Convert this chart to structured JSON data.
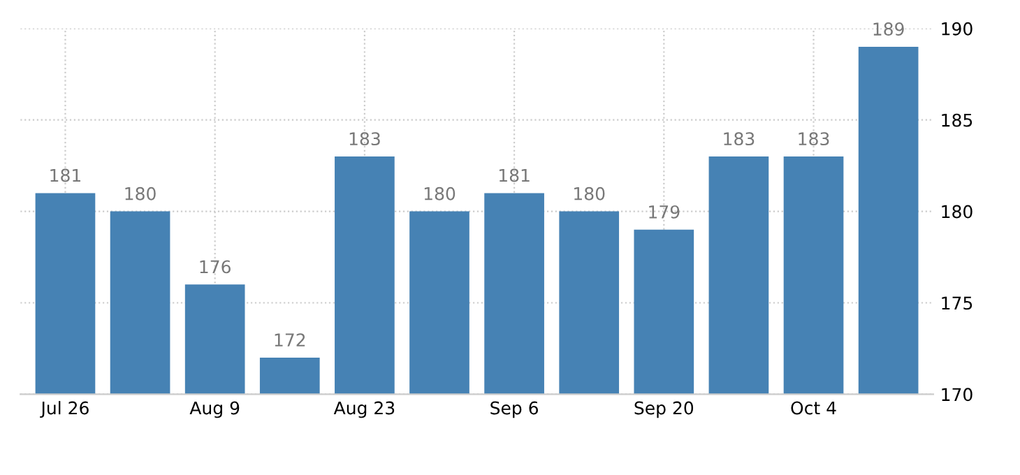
{
  "chart_data": {
    "type": "bar",
    "categories": [
      "Jul 26",
      null,
      "Aug 9",
      null,
      "Aug 23",
      null,
      "Sep 6",
      null,
      "Sep 20",
      null,
      "Oct 4",
      null
    ],
    "values": [
      181,
      180,
      176,
      172,
      183,
      180,
      181,
      180,
      179,
      183,
      183,
      189
    ],
    "color": "#4682b4",
    "ylim": [
      170,
      190
    ],
    "yticks": [
      170,
      175,
      180,
      185,
      190
    ],
    "grid": true,
    "data_labels": true
  }
}
